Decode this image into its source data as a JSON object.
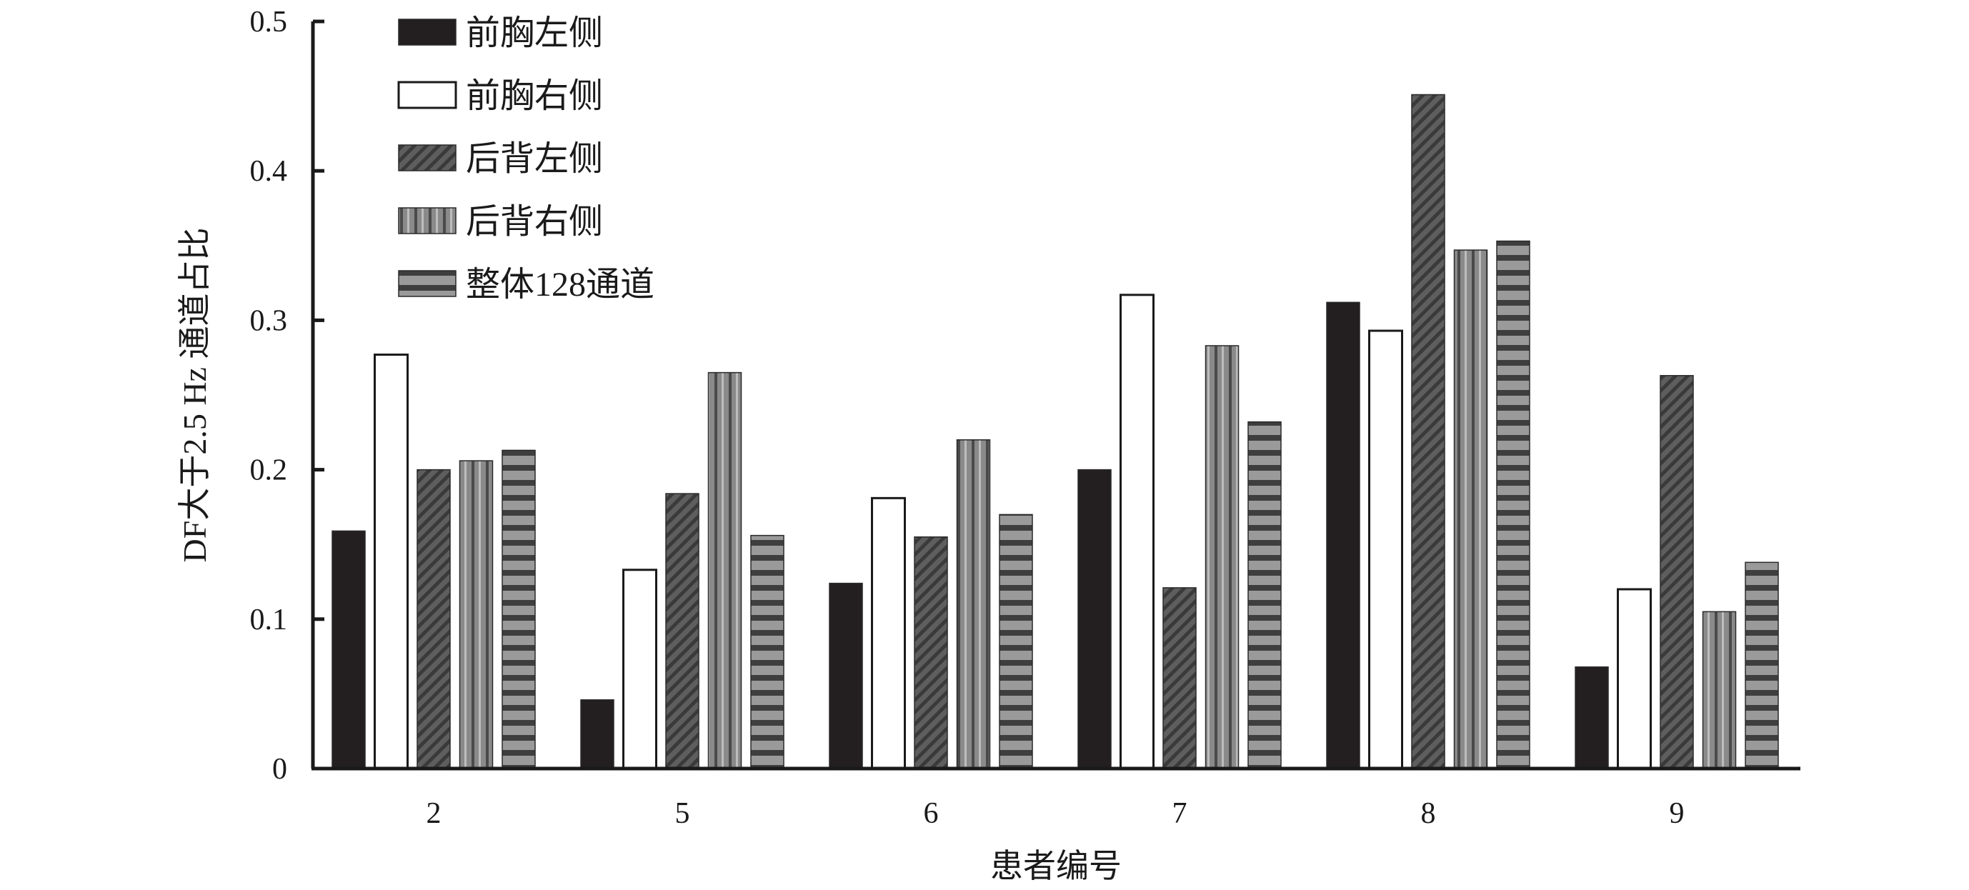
{
  "chart_data": {
    "type": "bar",
    "title": "",
    "xlabel": "患者编号",
    "ylabel": "DF大于2.5 Hz 通道占比",
    "categories": [
      "2",
      "5",
      "6",
      "7",
      "8",
      "9"
    ],
    "ylim": [
      0,
      0.5
    ],
    "yticks": [
      "0",
      "0.1",
      "0.2",
      "0.3",
      "0.4",
      "0.5"
    ],
    "grid": false,
    "legend_position": "top-left",
    "series": [
      {
        "name": "前胸左侧",
        "values": [
          0.159,
          0.046,
          0.124,
          0.2,
          0.312,
          0.068
        ],
        "color": "#231f20",
        "pattern": "solid"
      },
      {
        "name": "前胸右侧",
        "values": [
          0.277,
          0.133,
          0.181,
          0.317,
          0.293,
          0.12
        ],
        "color": "#ffffff",
        "pattern": "outline"
      },
      {
        "name": "后背左侧",
        "values": [
          0.2,
          0.184,
          0.155,
          0.121,
          0.451,
          0.263
        ],
        "color": "#555555",
        "pattern": "diagonal"
      },
      {
        "name": "后背右侧",
        "values": [
          0.206,
          0.265,
          0.22,
          0.283,
          0.347,
          0.105
        ],
        "color": "#808080",
        "pattern": "vertical"
      },
      {
        "name": "整体128通道",
        "values": [
          0.213,
          0.156,
          0.17,
          0.232,
          0.353,
          0.138
        ],
        "color": "#8c8c8c",
        "pattern": "horizontal"
      }
    ]
  }
}
